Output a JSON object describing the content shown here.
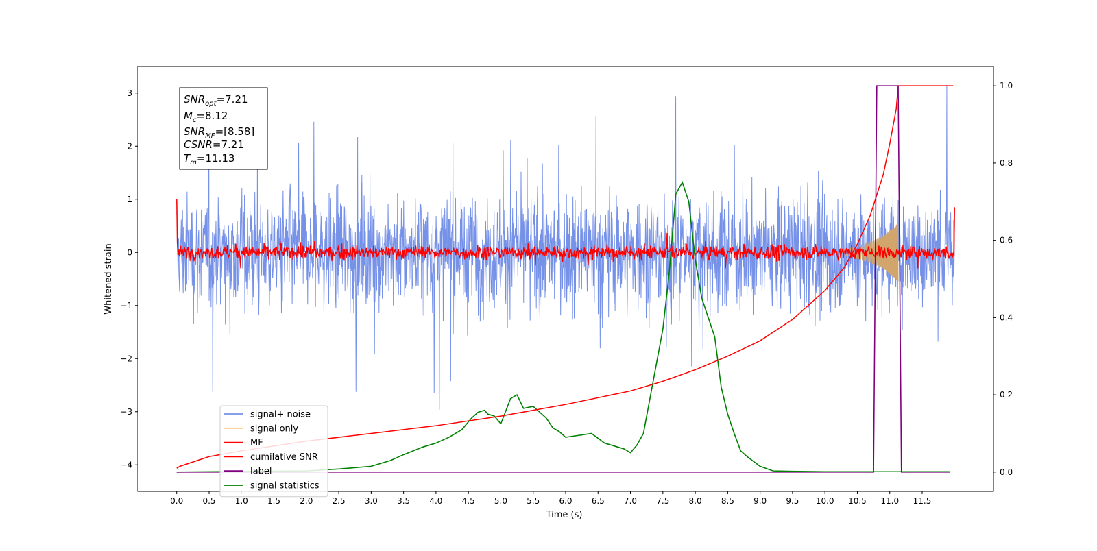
{
  "chart_data": {
    "type": "line",
    "xlabel": "Time (s)",
    "ylabel_left": "Whitened strain",
    "ylabel_right": "",
    "xlim": [
      -0.6,
      12.6
    ],
    "ylim_left": [
      -4.5,
      3.5
    ],
    "ylim_right": [
      -0.05,
      1.05
    ],
    "x_ticks": [
      "0.0",
      "0.5",
      "1.0",
      "1.5",
      "2.0",
      "2.5",
      "3.0",
      "3.5",
      "4.0",
      "4.5",
      "5.0",
      "5.5",
      "6.0",
      "6.5",
      "7.0",
      "7.5",
      "8.0",
      "8.5",
      "9.0",
      "9.5",
      "10.0",
      "10.5",
      "11.0",
      "11.5"
    ],
    "y_ticks_left": [
      "3",
      "2",
      "1",
      "0",
      "−1",
      "−2",
      "−3",
      "−4"
    ],
    "y_ticks_right": [
      "1.0",
      "0.8",
      "0.6",
      "0.4",
      "0.2",
      "0.0"
    ],
    "grid": false,
    "legend_position": "lower-left",
    "stats_box": {
      "lines": [
        {
          "sym": "SNR",
          "sub": "opt",
          "val": "=7.21"
        },
        {
          "sym": "M",
          "sub": "c",
          "val": "=8.12"
        },
        {
          "sym": "SNR",
          "sub": "MF",
          "val": "=[8.58]"
        },
        {
          "sym": "CSNR",
          "sub": "",
          "val": "=7.21"
        },
        {
          "sym": "T",
          "sub": "m",
          "val": "=11.13"
        }
      ]
    },
    "series": [
      {
        "name": "signal+ noise",
        "color": "#7691e8",
        "axis": "left",
        "description": "noise envelope approx ±1.2 std with spikes to ±3",
        "x_range": [
          0.0,
          12.0
        ]
      },
      {
        "name": "signal only",
        "color": "#f5c985",
        "axis": "left",
        "description": "chirp growing near merger",
        "chirp_envelope": [
          [
            10.3,
            0.05
          ],
          [
            10.6,
            0.15
          ],
          [
            10.9,
            0.3
          ],
          [
            11.13,
            0.55
          ]
        ]
      },
      {
        "name": "MF",
        "color": "#ff0000",
        "axis": "left",
        "description": "noisy band approx ±0.25 around 0"
      },
      {
        "name": "cumilative SNR",
        "color": "#ff0000",
        "axis": "right",
        "x": [
          0.0,
          0.05,
          0.5,
          1.0,
          2.0,
          3.0,
          4.0,
          5.0,
          6.0,
          7.0,
          7.5,
          8.0,
          8.5,
          9.0,
          9.5,
          10.0,
          10.3,
          10.5,
          10.7,
          10.9,
          11.0,
          11.1,
          11.13,
          11.5,
          11.98
        ],
        "y": [
          0.01,
          0.015,
          0.04,
          0.055,
          0.08,
          0.1,
          0.12,
          0.145,
          0.175,
          0.21,
          0.235,
          0.265,
          0.3,
          0.34,
          0.395,
          0.47,
          0.53,
          0.59,
          0.665,
          0.77,
          0.85,
          0.94,
          1.0,
          1.0,
          1.0
        ]
      },
      {
        "name": "label",
        "color": "#800080",
        "axis": "right",
        "x": [
          0.0,
          10.75,
          10.8,
          11.13,
          11.18,
          11.93
        ],
        "y": [
          0.0,
          0.0,
          1.0,
          1.0,
          0.0,
          0.0
        ]
      },
      {
        "name": "signal statistics",
        "color": "#008000",
        "axis": "right",
        "x": [
          0.0,
          2.0,
          2.5,
          3.0,
          3.3,
          3.5,
          3.8,
          4.0,
          4.2,
          4.3,
          4.4,
          4.45,
          4.55,
          4.65,
          4.75,
          4.8,
          4.9,
          5.0,
          5.15,
          5.25,
          5.35,
          5.5,
          5.6,
          5.7,
          5.8,
          5.9,
          6.0,
          6.2,
          6.4,
          6.6,
          6.8,
          6.9,
          7.0,
          7.1,
          7.2,
          7.3,
          7.4,
          7.5,
          7.6,
          7.7,
          7.8,
          7.9,
          8.0,
          8.1,
          8.2,
          8.3,
          8.4,
          8.5,
          8.6,
          8.7,
          8.8,
          9.0,
          9.2,
          9.5,
          10.0,
          11.0,
          11.93
        ],
        "y": [
          0.0,
          0.003,
          0.008,
          0.015,
          0.03,
          0.045,
          0.065,
          0.075,
          0.09,
          0.1,
          0.11,
          0.12,
          0.14,
          0.155,
          0.16,
          0.15,
          0.145,
          0.125,
          0.19,
          0.2,
          0.165,
          0.17,
          0.155,
          0.14,
          0.115,
          0.105,
          0.09,
          0.095,
          0.1,
          0.075,
          0.065,
          0.06,
          0.05,
          0.07,
          0.1,
          0.19,
          0.28,
          0.37,
          0.52,
          0.72,
          0.75,
          0.7,
          0.55,
          0.45,
          0.4,
          0.35,
          0.22,
          0.15,
          0.1,
          0.055,
          0.04,
          0.015,
          0.003,
          0.002,
          0.001,
          0.001,
          0.001
        ]
      }
    ]
  }
}
